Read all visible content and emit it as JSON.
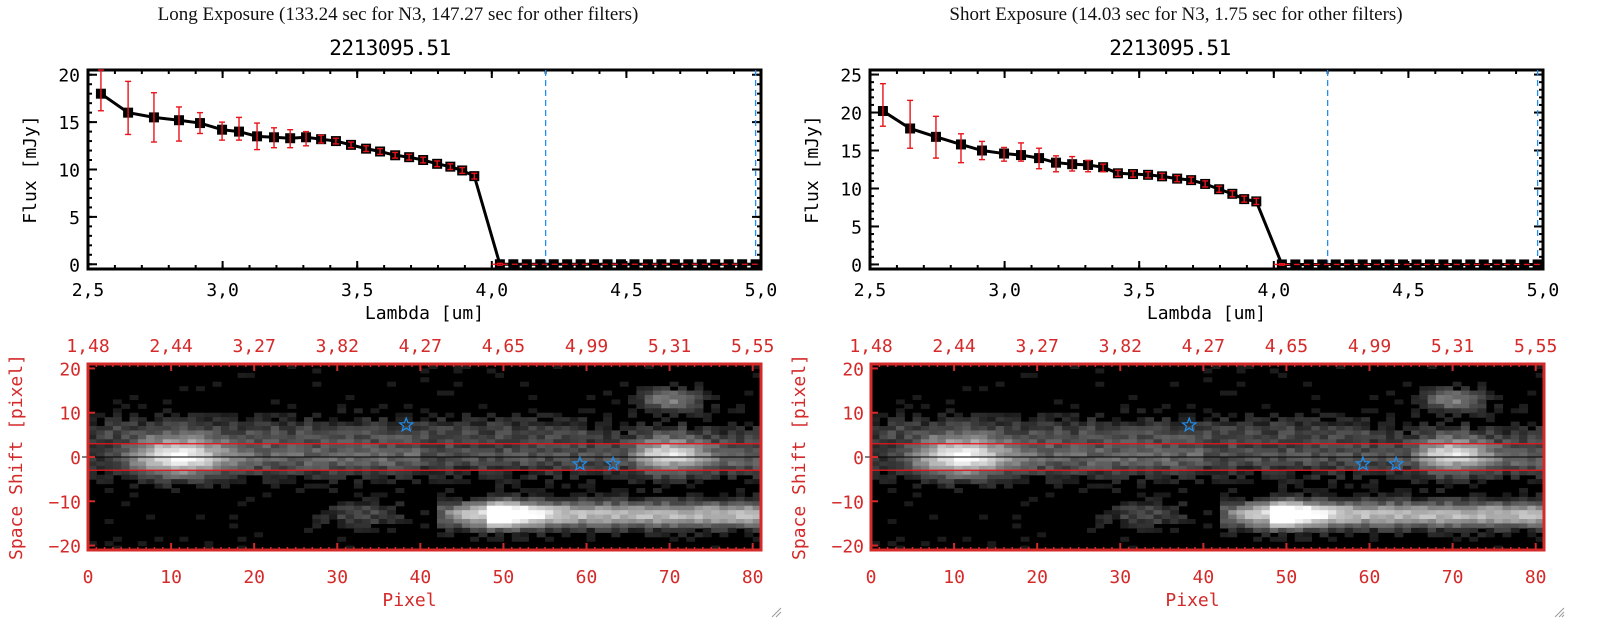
{
  "panels": [
    {
      "heading": "Long Exposure (133.24 sec for N3, 147.27 sec for other filters)",
      "plot_title": "2213095.51"
    },
    {
      "heading": "Short Exposure (14.03 sec for N3, 1.75 sec for other filters)",
      "plot_title": "2213095.51"
    }
  ],
  "colors": {
    "axis": "#000000",
    "errorbar": "#e8141a",
    "image_axis": "#d42a2a",
    "marker_line": "#1f8ff0",
    "zero_line": "#e8141a",
    "star": "#1f8ff0"
  },
  "chart_data": [
    {
      "type": "line",
      "title": "2213095.51",
      "xlabel": "Lambda [um]",
      "ylabel": "Flux [mJy]",
      "xlim": [
        2.5,
        5.0
      ],
      "ylim": [
        -0.5,
        20.5
      ],
      "xticks": [
        "2.5",
        "3.0",
        "3.5",
        "4.0",
        "4.5",
        "5.0"
      ],
      "yticks": [
        "0",
        "5",
        "10",
        "15",
        "20"
      ],
      "vlines": [
        4.2,
        4.98
      ],
      "zero_line": 0,
      "series": [
        {
          "name": "flux",
          "x": [
            2.548,
            2.649,
            2.745,
            2.838,
            2.916,
            2.998,
            3.061,
            3.128,
            3.191,
            3.251,
            3.31,
            3.366,
            3.421,
            3.477,
            3.533,
            3.585,
            3.641,
            3.693,
            3.745,
            3.797,
            3.846,
            3.89,
            3.935,
            4.03,
            4.08,
            4.13,
            4.18,
            4.23,
            4.28,
            4.33,
            4.38,
            4.43,
            4.48,
            4.53,
            4.58,
            4.63,
            4.68,
            4.73,
            4.78,
            4.83,
            4.88,
            4.93,
            4.98
          ],
          "y": [
            18.0,
            16.0,
            15.5,
            15.2,
            14.9,
            14.2,
            14.0,
            13.5,
            13.4,
            13.3,
            13.4,
            13.2,
            13.0,
            12.6,
            12.2,
            11.9,
            11.5,
            11.3,
            11.0,
            10.6,
            10.3,
            9.9,
            9.3,
            0,
            0,
            0,
            0,
            0,
            0,
            0,
            0,
            0,
            0,
            0,
            0,
            0,
            0,
            0,
            0,
            0,
            0,
            0,
            0
          ],
          "err_hi": [
            2.5,
            3.3,
            2.6,
            1.4,
            1.1,
            0.8,
            1.5,
            1.4,
            1.0,
            0.9,
            0.6,
            0.4,
            0.3,
            0.3,
            0.3,
            0.3,
            0.3,
            0.3,
            0.3,
            0.3,
            0.3,
            0.3,
            0.3,
            0.1,
            0,
            0,
            0,
            0,
            0,
            0,
            0,
            0,
            0,
            0,
            0,
            0,
            0,
            0,
            0,
            0,
            0,
            0,
            0
          ],
          "err_lo": [
            1.8,
            2.3,
            2.6,
            2.2,
            1.1,
            1.1,
            0.9,
            1.4,
            1.1,
            1.0,
            0.9,
            0.4,
            0.3,
            0.3,
            0.3,
            0.3,
            0.3,
            0.3,
            0.3,
            0.3,
            0.3,
            0.3,
            0.3,
            0.1,
            0,
            0,
            0,
            0,
            0,
            0,
            0,
            0,
            0,
            0,
            0,
            0,
            0,
            0,
            0,
            0,
            0,
            0,
            0
          ]
        }
      ],
      "grid": false
    },
    {
      "type": "heatmap",
      "xlabel": "Pixel",
      "ylabel": "Space Shift [pixel]",
      "xlim": [
        0,
        81
      ],
      "ylim": [
        -21,
        21
      ],
      "xticks": [
        "0",
        "10",
        "20",
        "30",
        "40",
        "50",
        "60",
        "70",
        "80"
      ],
      "yticks": [
        "-20",
        "-10",
        "0",
        "10",
        "20"
      ],
      "top_xticks": [
        "1.48",
        "2.44",
        "3.27",
        "3.82",
        "4.27",
        "4.65",
        "4.99",
        "5.31",
        "5.55"
      ],
      "hlines_red": [
        3,
        -3
      ],
      "hline_black": 0,
      "stars": [
        [
          38.3,
          7.2
        ],
        [
          59.2,
          -1.6
        ],
        [
          63.2,
          -1.6
        ]
      ]
    },
    {
      "type": "line",
      "title": "2213095.51",
      "xlabel": "Lambda [um]",
      "ylabel": "Flux [mJy]",
      "xlim": [
        2.5,
        5.0
      ],
      "ylim": [
        -0.6,
        25.6
      ],
      "xticks": [
        "2.5",
        "3.0",
        "3.5",
        "4.0",
        "4.5",
        "5.0"
      ],
      "yticks": [
        "0",
        "5",
        "10",
        "15",
        "20",
        "25"
      ],
      "vlines": [
        4.2,
        4.98
      ],
      "zero_line": 0,
      "series": [
        {
          "name": "flux",
          "x": [
            2.548,
            2.649,
            2.745,
            2.838,
            2.916,
            2.998,
            3.061,
            3.128,
            3.191,
            3.251,
            3.31,
            3.366,
            3.421,
            3.477,
            3.533,
            3.585,
            3.641,
            3.693,
            3.745,
            3.797,
            3.846,
            3.89,
            3.935,
            4.03,
            4.08,
            4.13,
            4.18,
            4.23,
            4.28,
            4.33,
            4.38,
            4.43,
            4.48,
            4.53,
            4.58,
            4.63,
            4.68,
            4.73,
            4.78,
            4.83,
            4.88,
            4.93,
            4.98
          ],
          "y": [
            20.2,
            17.9,
            16.8,
            15.8,
            15.0,
            14.6,
            14.4,
            14.0,
            13.4,
            13.2,
            13.1,
            12.8,
            12.0,
            11.9,
            11.8,
            11.6,
            11.3,
            11.1,
            10.6,
            9.9,
            9.3,
            8.6,
            8.3,
            0,
            0,
            0,
            0,
            0,
            0,
            0,
            0,
            0,
            0,
            0,
            0,
            0,
            0,
            0,
            0,
            0,
            0,
            0,
            0
          ],
          "err_hi": [
            3.6,
            3.7,
            2.7,
            1.4,
            1.2,
            0.8,
            1.6,
            1.3,
            0.9,
            1.0,
            0.6,
            0.4,
            0.4,
            0.4,
            0.4,
            0.4,
            0.4,
            0.4,
            0.4,
            0.4,
            0.4,
            0.4,
            0.4,
            0.1,
            0,
            0,
            0,
            0,
            0,
            0,
            0,
            0,
            0,
            0,
            0,
            0,
            0,
            0,
            0,
            0,
            0,
            0,
            0
          ],
          "err_lo": [
            2.0,
            2.6,
            2.8,
            2.4,
            1.2,
            1.0,
            0.8,
            1.4,
            1.2,
            0.9,
            0.9,
            0.6,
            0.4,
            0.4,
            0.4,
            0.4,
            0.4,
            0.4,
            0.4,
            0.4,
            0.4,
            0.4,
            0.4,
            0.1,
            0,
            0,
            0,
            0,
            0,
            0,
            0,
            0,
            0,
            0,
            0,
            0,
            0,
            0,
            0,
            0,
            0,
            0,
            0
          ]
        }
      ],
      "grid": false
    },
    {
      "type": "heatmap",
      "xlabel": "Pixel",
      "ylabel": "Space Shift [pixel]",
      "xlim": [
        0,
        81
      ],
      "ylim": [
        -21,
        21
      ],
      "xticks": [
        "0",
        "10",
        "20",
        "30",
        "40",
        "50",
        "60",
        "70",
        "80"
      ],
      "yticks": [
        "-20",
        "-10",
        "0",
        "10",
        "20"
      ],
      "top_xticks": [
        "1.48",
        "2.44",
        "3.27",
        "3.82",
        "4.27",
        "4.65",
        "4.99",
        "5.31",
        "5.55"
      ],
      "hlines_red": [
        3,
        -3
      ],
      "hline_black": 0,
      "stars": [
        [
          38.3,
          7.2
        ],
        [
          59.2,
          -1.6
        ],
        [
          63.2,
          -1.6
        ]
      ]
    }
  ]
}
